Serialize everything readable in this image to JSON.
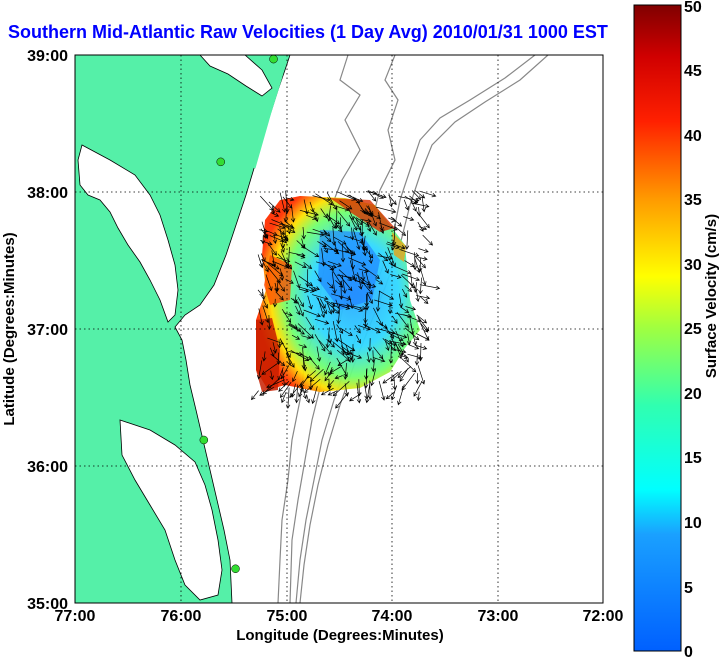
{
  "title": "Southern Mid-Atlantic Raw Velocities (1 Day Avg) 2010/01/31 1000 EST",
  "title_color": "#0000ff",
  "map": {
    "xlabel": "Longitude (Degrees:Minutes)",
    "ylabel": "Latitude (Degrees:Minutes)",
    "x_ticks": [
      "77:00",
      "76:00",
      "75:00",
      "74:00",
      "73:00",
      "72:00"
    ],
    "y_ticks": [
      "39:00",
      "38:00",
      "37:00",
      "36:00",
      "35:00"
    ],
    "lon_range": [
      -77,
      -72
    ],
    "lat_range": [
      35,
      39
    ],
    "land_color": "#55f0a8",
    "water_color": "#ffffff",
    "station_color": "#33dd33"
  },
  "colorbar": {
    "label": "Surface Velocity (cm/s)",
    "ticks": [
      "0",
      "5",
      "10",
      "15",
      "20",
      "25",
      "30",
      "35",
      "40",
      "45",
      "50"
    ],
    "range": [
      0,
      50
    ]
  },
  "stations": [
    {
      "lon": -75.12,
      "lat": 38.97
    },
    {
      "lon": -75.62,
      "lat": 38.22
    },
    {
      "lon": -75.78,
      "lat": 36.19
    },
    {
      "lon": -75.48,
      "lat": 35.25
    }
  ]
}
